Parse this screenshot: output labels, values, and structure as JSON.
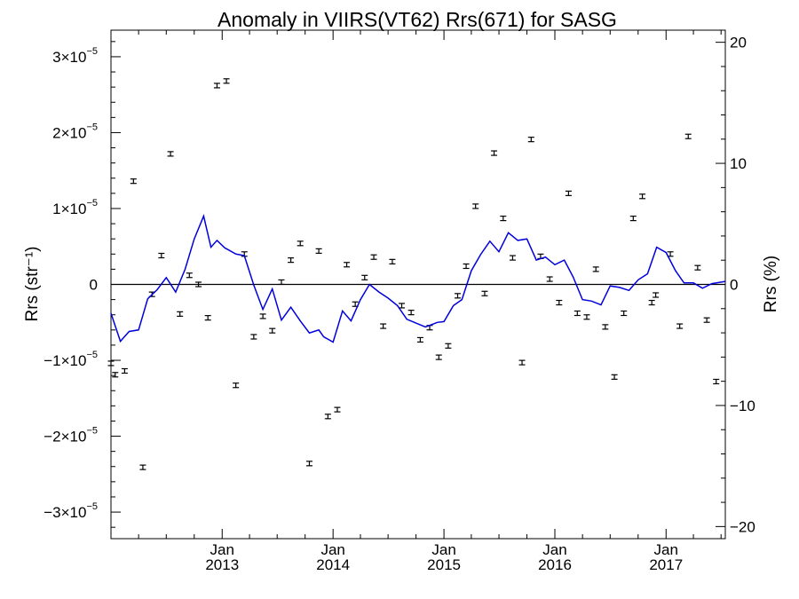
{
  "chart_data": {
    "type": "scatter",
    "title": "Anomaly in VIIRS(VT62) Rrs(671) for SASG",
    "ylabel_left": "Rrs (str⁻¹)",
    "ylabel_right": "Rrs (%)",
    "ylim_left": [
      -3.35e-05,
      3.35e-05
    ],
    "ylim_right": [
      -21,
      21
    ],
    "xlim": [
      "2012-01-01",
      "2017-07-15"
    ],
    "left_ticks": [
      {
        "value": -3e-05,
        "mantissa": "−3×10",
        "exp": "−5"
      },
      {
        "value": -2e-05,
        "mantissa": "−2×10",
        "exp": "−5"
      },
      {
        "value": -1e-05,
        "mantissa": "−1×10",
        "exp": "−5"
      },
      {
        "value": 0,
        "mantissa": "0",
        "exp": ""
      },
      {
        "value": 1e-05,
        "mantissa": "1×10",
        "exp": "−5"
      },
      {
        "value": 2e-05,
        "mantissa": "2×10",
        "exp": "−5"
      },
      {
        "value": 3e-05,
        "mantissa": "3×10",
        "exp": "−5"
      }
    ],
    "right_ticks": [
      {
        "value": -20,
        "label": "−20"
      },
      {
        "value": -10,
        "label": "−10"
      },
      {
        "value": 0,
        "label": "0"
      },
      {
        "value": 10,
        "label": "10"
      },
      {
        "value": 20,
        "label": "20"
      }
    ],
    "x_ticks": [
      {
        "date": "2013-01-01",
        "month": "Jan",
        "year": "2013"
      },
      {
        "date": "2014-01-01",
        "month": "Jan",
        "year": "2014"
      },
      {
        "date": "2015-01-01",
        "month": "Jan",
        "year": "2015"
      },
      {
        "date": "2016-01-01",
        "month": "Jan",
        "year": "2016"
      },
      {
        "date": "2017-01-01",
        "month": "Jan",
        "year": "2017"
      }
    ],
    "zero_line": 0,
    "scatter_points": [
      {
        "x": "2012-01-01",
        "y": -1.04e-05
      },
      {
        "x": "2012-01-15",
        "y": -1.19e-05
      },
      {
        "x": "2012-02-15",
        "y": -1.14e-05
      },
      {
        "x": "2012-03-15",
        "y": 1.36e-05
      },
      {
        "x": "2012-04-15",
        "y": -2.41e-05
      },
      {
        "x": "2012-05-15",
        "y": -1.3e-06
      },
      {
        "x": "2012-06-15",
        "y": 3.8e-06
      },
      {
        "x": "2012-07-15",
        "y": 1.72e-05
      },
      {
        "x": "2012-08-15",
        "y": -3.9e-06
      },
      {
        "x": "2012-09-15",
        "y": 1.2e-06
      },
      {
        "x": "2012-10-15",
        "y": 0.0
      },
      {
        "x": "2012-11-15",
        "y": -4.4e-06
      },
      {
        "x": "2012-12-15",
        "y": 2.62e-05
      },
      {
        "x": "2013-01-15",
        "y": 2.68e-05
      },
      {
        "x": "2013-02-15",
        "y": -1.33e-05
      },
      {
        "x": "2013-03-15",
        "y": 4e-06
      },
      {
        "x": "2013-04-15",
        "y": -6.9e-06
      },
      {
        "x": "2013-05-15",
        "y": -4.2e-06
      },
      {
        "x": "2013-06-15",
        "y": -6.1e-06
      },
      {
        "x": "2013-07-15",
        "y": 3e-07
      },
      {
        "x": "2013-08-15",
        "y": 3.2e-06
      },
      {
        "x": "2013-09-15",
        "y": 5.4e-06
      },
      {
        "x": "2013-10-15",
        "y": -2.36e-05
      },
      {
        "x": "2013-11-15",
        "y": 4.4e-06
      },
      {
        "x": "2013-12-15",
        "y": -1.74e-05
      },
      {
        "x": "2014-01-15",
        "y": -1.65e-05
      },
      {
        "x": "2014-02-15",
        "y": 2.6e-06
      },
      {
        "x": "2014-03-15",
        "y": -2.6e-06
      },
      {
        "x": "2014-04-15",
        "y": 9e-07
      },
      {
        "x": "2014-05-15",
        "y": 3.6e-06
      },
      {
        "x": "2014-06-15",
        "y": -5.5e-06
      },
      {
        "x": "2014-07-15",
        "y": 3e-06
      },
      {
        "x": "2014-08-15",
        "y": -2.8e-06
      },
      {
        "x": "2014-09-15",
        "y": -3.7e-06
      },
      {
        "x": "2014-10-15",
        "y": -7.3e-06
      },
      {
        "x": "2014-11-15",
        "y": -5.7e-06
      },
      {
        "x": "2014-12-15",
        "y": -9.6e-06
      },
      {
        "x": "2015-01-15",
        "y": -8.1e-06
      },
      {
        "x": "2015-02-15",
        "y": -1.5e-06
      },
      {
        "x": "2015-03-15",
        "y": 2.4e-06
      },
      {
        "x": "2015-04-15",
        "y": 1.03e-05
      },
      {
        "x": "2015-05-15",
        "y": -1.2e-06
      },
      {
        "x": "2015-06-15",
        "y": 1.73e-05
      },
      {
        "x": "2015-07-15",
        "y": 8.7e-06
      },
      {
        "x": "2015-08-15",
        "y": 3.5e-06
      },
      {
        "x": "2015-09-15",
        "y": -1.03e-05
      },
      {
        "x": "2015-10-15",
        "y": 1.91e-05
      },
      {
        "x": "2015-11-15",
        "y": 3.7e-06
      },
      {
        "x": "2015-12-15",
        "y": 7e-07
      },
      {
        "x": "2016-01-15",
        "y": -2.4e-06
      },
      {
        "x": "2016-02-15",
        "y": 1.2e-05
      },
      {
        "x": "2016-03-15",
        "y": -3.8e-06
      },
      {
        "x": "2016-04-15",
        "y": -4.3e-06
      },
      {
        "x": "2016-05-15",
        "y": 2e-06
      },
      {
        "x": "2016-06-15",
        "y": -5.6e-06
      },
      {
        "x": "2016-07-15",
        "y": -1.22e-05
      },
      {
        "x": "2016-08-15",
        "y": -3.8e-06
      },
      {
        "x": "2016-09-15",
        "y": 8.7e-06
      },
      {
        "x": "2016-10-15",
        "y": 1.16e-05
      },
      {
        "x": "2016-11-15",
        "y": -2.4e-06
      },
      {
        "x": "2016-11-28",
        "y": -1.4e-06
      },
      {
        "x": "2017-01-15",
        "y": 4e-06
      },
      {
        "x": "2017-02-15",
        "y": -5.5e-06
      },
      {
        "x": "2017-03-15",
        "y": 1.95e-05
      },
      {
        "x": "2017-04-15",
        "y": 2.2e-06
      },
      {
        "x": "2017-05-15",
        "y": -4.7e-06
      },
      {
        "x": "2017-06-15",
        "y": -1.28e-05
      }
    ],
    "line_series": {
      "color": "#0000dd",
      "points": [
        {
          "x": "2012-01-01",
          "y": -3.8e-06
        },
        {
          "x": "2012-02-01",
          "y": -7.5e-06
        },
        {
          "x": "2012-03-01",
          "y": -6.2e-06
        },
        {
          "x": "2012-04-01",
          "y": -6e-06
        },
        {
          "x": "2012-05-01",
          "y": -1.9e-06
        },
        {
          "x": "2012-06-01",
          "y": -7e-07
        },
        {
          "x": "2012-07-01",
          "y": 9e-07
        },
        {
          "x": "2012-08-01",
          "y": -1e-06
        },
        {
          "x": "2012-09-01",
          "y": 2e-06
        },
        {
          "x": "2012-10-01",
          "y": 6e-06
        },
        {
          "x": "2012-11-01",
          "y": 9e-06
        },
        {
          "x": "2012-11-25",
          "y": 4.9e-06
        },
        {
          "x": "2012-12-15",
          "y": 5.8e-06
        },
        {
          "x": "2013-01-10",
          "y": 4.8e-06
        },
        {
          "x": "2013-02-15",
          "y": 4e-06
        },
        {
          "x": "2013-03-15",
          "y": 3.8e-06
        },
        {
          "x": "2013-04-15",
          "y": -1e-07
        },
        {
          "x": "2013-05-15",
          "y": -3.3e-06
        },
        {
          "x": "2013-06-15",
          "y": -6e-07
        },
        {
          "x": "2013-07-15",
          "y": -4.7e-06
        },
        {
          "x": "2013-08-15",
          "y": -3e-06
        },
        {
          "x": "2013-09-15",
          "y": -4.8e-06
        },
        {
          "x": "2013-10-15",
          "y": -6.4e-06
        },
        {
          "x": "2013-11-15",
          "y": -6e-06
        },
        {
          "x": "2013-12-01",
          "y": -6.9e-06
        },
        {
          "x": "2014-01-01",
          "y": -7.6e-06
        },
        {
          "x": "2014-02-01",
          "y": -3.5e-06
        },
        {
          "x": "2014-03-01",
          "y": -4.8e-06
        },
        {
          "x": "2014-04-01",
          "y": -2e-06
        },
        {
          "x": "2014-05-01",
          "y": 0.0
        },
        {
          "x": "2014-06-01",
          "y": -1e-06
        },
        {
          "x": "2014-07-01",
          "y": -1.8e-06
        },
        {
          "x": "2014-08-01",
          "y": -2.8e-06
        },
        {
          "x": "2014-09-01",
          "y": -4.6e-06
        },
        {
          "x": "2014-10-01",
          "y": -5.1e-06
        },
        {
          "x": "2014-11-01",
          "y": -5.6e-06
        },
        {
          "x": "2014-12-10",
          "y": -5e-06
        },
        {
          "x": "2015-01-01",
          "y": -4.9e-06
        },
        {
          "x": "2015-02-01",
          "y": -2.8e-06
        },
        {
          "x": "2015-03-01",
          "y": -2e-06
        },
        {
          "x": "2015-04-01",
          "y": 1.8e-06
        },
        {
          "x": "2015-05-01",
          "y": 3.9e-06
        },
        {
          "x": "2015-06-01",
          "y": 5.7e-06
        },
        {
          "x": "2015-07-01",
          "y": 4.3e-06
        },
        {
          "x": "2015-08-01",
          "y": 6.8e-06
        },
        {
          "x": "2015-09-01",
          "y": 5.8e-06
        },
        {
          "x": "2015-10-01",
          "y": 6e-06
        },
        {
          "x": "2015-11-01",
          "y": 3.2e-06
        },
        {
          "x": "2015-12-01",
          "y": 3.6e-06
        },
        {
          "x": "2016-01-01",
          "y": 2.6e-06
        },
        {
          "x": "2016-02-01",
          "y": 3.2e-06
        },
        {
          "x": "2016-03-01",
          "y": 1e-06
        },
        {
          "x": "2016-04-01",
          "y": -2e-06
        },
        {
          "x": "2016-05-01",
          "y": -2.2e-06
        },
        {
          "x": "2016-06-01",
          "y": -2.7e-06
        },
        {
          "x": "2016-07-01",
          "y": -2e-07
        },
        {
          "x": "2016-08-01",
          "y": -4e-07
        },
        {
          "x": "2016-09-01",
          "y": -8e-07
        },
        {
          "x": "2016-10-01",
          "y": 6e-07
        },
        {
          "x": "2016-11-01",
          "y": 1.4e-06
        },
        {
          "x": "2016-12-01",
          "y": 4.9e-06
        },
        {
          "x": "2017-01-01",
          "y": 4.2e-06
        },
        {
          "x": "2017-02-01",
          "y": 1.8e-06
        },
        {
          "x": "2017-03-01",
          "y": 2e-07
        },
        {
          "x": "2017-04-01",
          "y": 2e-07
        },
        {
          "x": "2017-05-01",
          "y": -5e-07
        },
        {
          "x": "2017-06-01",
          "y": 1e-07
        },
        {
          "x": "2017-07-15",
          "y": 4e-07
        }
      ]
    },
    "grid": false,
    "legend": "none",
    "colors": {
      "line": "#0000dd",
      "points": "#000000",
      "axes": "#000000"
    }
  }
}
